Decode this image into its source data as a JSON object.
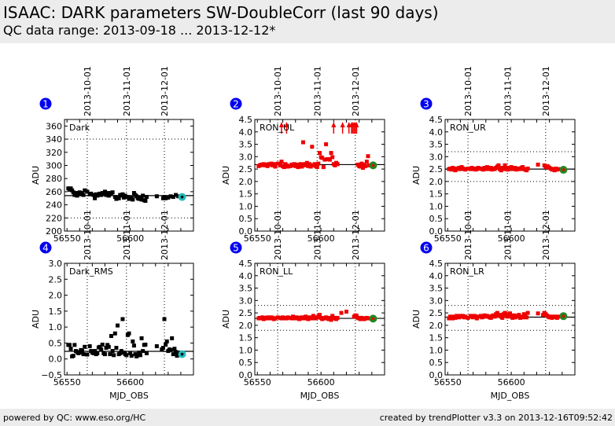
{
  "header": {
    "title": "ISAAC: DARK parameters SW-DoubleCorr (last 90 days)",
    "subtitle": "QC data range: 2013-09-18 ... 2013-12-12*"
  },
  "footer": {
    "left": "powered by QC: www.eso.org/HC",
    "right": "created by trendPlotter v3.3 on 2013-12-16T09:52:42"
  },
  "colors": {
    "badge": "#0000ee",
    "black_points": "#000000",
    "red_points": "#ee0000",
    "latest_cyan": "#22bbbb",
    "latest_green": "#228822"
  },
  "chart_data": [
    {
      "type": "scatter",
      "id": 1,
      "badge": "1",
      "label": "Dark",
      "ylabel": "ADU",
      "xlabel": "",
      "xlim": [
        56548,
        56650
      ],
      "ylim": [
        200,
        370
      ],
      "yticks": [
        200,
        220,
        240,
        260,
        280,
        300,
        320,
        340,
        360
      ],
      "xticks": [
        56550,
        56600
      ],
      "date_ticks": [
        {
          "mjd": 56566,
          "label": "2013-10-01"
        },
        {
          "mjd": 56597,
          "label": "2013-11-01"
        },
        {
          "mjd": 56627,
          "label": "2013-12-01"
        }
      ],
      "ref_line": 254,
      "thresholds": [
        220,
        340
      ],
      "point_color": "black",
      "latest": {
        "x": 56641,
        "y": 252,
        "color": "cyan"
      },
      "x": [
        56551,
        56552,
        56553,
        56554,
        56555,
        56556,
        56557,
        56558,
        56559,
        56560,
        56561,
        56562,
        56563,
        56564,
        56566,
        56568,
        56569,
        56571,
        56572,
        56573,
        56574,
        56575,
        56576,
        56577,
        56578,
        56579,
        56580,
        56581,
        56582,
        56583,
        56584,
        56585,
        56586,
        56588,
        56589,
        56590,
        56591,
        56592,
        56593,
        56594,
        56595,
        56596,
        56598,
        56599,
        56601,
        56602,
        56603,
        56604,
        56605,
        56606,
        56607,
        56608,
        56609,
        56610,
        56611,
        56612,
        56613,
        56621,
        56626,
        56627,
        56628,
        56630,
        56632,
        56634,
        56636,
        56638
      ],
      "y": [
        265,
        263,
        265,
        262,
        259,
        255,
        258,
        254,
        257,
        259,
        256,
        258,
        255,
        262,
        260,
        256,
        257,
        255,
        250,
        256,
        254,
        256,
        257,
        255,
        258,
        257,
        260,
        255,
        258,
        254,
        256,
        258,
        259,
        252,
        249,
        251,
        250,
        255,
        254,
        256,
        251,
        254,
        252,
        249,
        251,
        248,
        258,
        255,
        253,
        250,
        249,
        251,
        248,
        254,
        247,
        246,
        252,
        253,
        250,
        252,
        250,
        251,
        253,
        252,
        255,
        253
      ]
    },
    {
      "type": "scatter",
      "id": 2,
      "badge": "2",
      "label": "RON_UL",
      "ylabel": "ADU",
      "xlabel": "",
      "xlim": [
        56548,
        56650
      ],
      "ylim": [
        0,
        4.5
      ],
      "yticks": [
        0.0,
        0.5,
        1.0,
        1.5,
        2.0,
        2.5,
        3.0,
        3.5,
        4.0,
        4.5
      ],
      "xticks": [
        56550,
        56600
      ],
      "date_ticks": [
        {
          "mjd": 56566,
          "label": "2013-10-01"
        },
        {
          "mjd": 56597,
          "label": "2013-11-01"
        },
        {
          "mjd": 56627,
          "label": "2013-12-01"
        }
      ],
      "ref_line": 2.68,
      "thresholds": [],
      "point_color": "red",
      "latest": {
        "x": 56641,
        "y": 2.65,
        "color": "green"
      },
      "outliers_above_x": [
        56569,
        56573,
        56610,
        56617,
        56622,
        56624,
        56625,
        56626,
        56627,
        56628
      ],
      "x": [
        56551,
        56552,
        56553,
        56554,
        56555,
        56556,
        56557,
        56558,
        56559,
        56560,
        56561,
        56562,
        56563,
        56564,
        56566,
        56568,
        56569,
        56570,
        56571,
        56572,
        56573,
        56574,
        56576,
        56577,
        56578,
        56579,
        56580,
        56581,
        56582,
        56583,
        56584,
        56585,
        56586,
        56587,
        56588,
        56589,
        56590,
        56591,
        56592,
        56593,
        56594,
        56595,
        56596,
        56597,
        56598,
        56599,
        56600,
        56601,
        56602,
        56603,
        56604,
        56605,
        56606,
        56607,
        56608,
        56609,
        56610,
        56611,
        56612,
        56613,
        56629,
        56630,
        56631,
        56632,
        56633,
        56634,
        56635,
        56636,
        56637,
        56638
      ],
      "y": [
        2.62,
        2.65,
        2.68,
        2.66,
        2.7,
        2.65,
        2.68,
        2.62,
        2.7,
        2.68,
        2.72,
        2.65,
        2.7,
        2.6,
        2.72,
        2.65,
        2.8,
        2.62,
        2.58,
        2.7,
        2.65,
        2.6,
        2.62,
        2.68,
        2.65,
        2.7,
        2.62,
        2.68,
        2.58,
        2.65,
        2.7,
        2.6,
        3.58,
        2.7,
        2.65,
        2.75,
        2.62,
        2.7,
        2.6,
        3.4,
        2.65,
        2.7,
        2.62,
        2.58,
        2.72,
        3.15,
        2.98,
        2.95,
        2.58,
        2.88,
        3.5,
        2.9,
        2.9,
        2.88,
        3.15,
        2.98,
        2.7,
        2.65,
        2.75,
        2.7,
        2.68,
        2.62,
        2.6,
        2.72,
        2.55,
        2.68,
        2.62,
        2.8,
        3.02,
        2.65
      ]
    },
    {
      "type": "scatter",
      "id": 3,
      "badge": "3",
      "label": "RON_UR",
      "ylabel": "ADU",
      "xlabel": "",
      "xlim": [
        56548,
        56650
      ],
      "ylim": [
        0,
        4.5
      ],
      "yticks": [
        0.0,
        0.5,
        1.0,
        1.5,
        2.0,
        2.5,
        3.0,
        3.5,
        4.0,
        4.5
      ],
      "xticks": [
        56550,
        56600
      ],
      "date_ticks": [
        {
          "mjd": 56566,
          "label": "2013-10-01"
        },
        {
          "mjd": 56597,
          "label": "2013-11-01"
        },
        {
          "mjd": 56627,
          "label": "2013-12-01"
        }
      ],
      "ref_line": 2.5,
      "thresholds": [
        2.0,
        3.2
      ],
      "point_color": "red",
      "latest": {
        "x": 56641,
        "y": 2.47,
        "color": "green"
      },
      "x": [
        56551,
        56552,
        56553,
        56554,
        56555,
        56556,
        56557,
        56558,
        56559,
        56560,
        56561,
        56562,
        56563,
        56564,
        56566,
        56568,
        56569,
        56570,
        56571,
        56572,
        56573,
        56574,
        56576,
        56577,
        56578,
        56579,
        56580,
        56581,
        56582,
        56583,
        56584,
        56585,
        56586,
        56587,
        56588,
        56589,
        56590,
        56591,
        56592,
        56593,
        56594,
        56595,
        56596,
        56597,
        56598,
        56599,
        56600,
        56601,
        56602,
        56603,
        56604,
        56605,
        56606,
        56607,
        56608,
        56609,
        56610,
        56611,
        56612,
        56613,
        56621,
        56626,
        56627,
        56628,
        56629,
        56630,
        56631,
        56632,
        56633,
        56634,
        56635,
        56636,
        56637
      ],
      "y": [
        2.5,
        2.52,
        2.48,
        2.55,
        2.5,
        2.45,
        2.52,
        2.5,
        2.55,
        2.5,
        2.58,
        2.52,
        2.5,
        2.48,
        2.52,
        2.5,
        2.55,
        2.5,
        2.52,
        2.48,
        2.5,
        2.55,
        2.52,
        2.5,
        2.48,
        2.55,
        2.5,
        2.58,
        2.52,
        2.5,
        2.55,
        2.48,
        2.52,
        2.5,
        2.55,
        2.6,
        2.65,
        2.5,
        2.45,
        2.55,
        2.5,
        2.65,
        2.52,
        2.48,
        2.55,
        2.5,
        2.58,
        2.52,
        2.5,
        2.55,
        2.48,
        2.5,
        2.52,
        2.5,
        2.55,
        2.58,
        2.5,
        2.48,
        2.45,
        2.52,
        2.68,
        2.65,
        2.58,
        2.62,
        2.6,
        2.55,
        2.52,
        2.48,
        2.5,
        2.45,
        2.52,
        2.48,
        2.5
      ]
    },
    {
      "type": "scatter",
      "id": 4,
      "badge": "4",
      "label": "Dark_RMS",
      "ylabel": "ADU",
      "xlabel": "MJD_OBS",
      "xlim": [
        56548,
        56650
      ],
      "ylim": [
        -0.5,
        3.0
      ],
      "yticks": [
        -0.5,
        0.0,
        0.5,
        1.0,
        1.5,
        2.0,
        2.5,
        3.0
      ],
      "xticks": [
        56550,
        56600
      ],
      "date_ticks": [
        {
          "mjd": 56566,
          "label": "2013-10-01"
        },
        {
          "mjd": 56597,
          "label": "2013-11-01"
        },
        {
          "mjd": 56627,
          "label": "2013-12-01"
        }
      ],
      "ref_line": 0.24,
      "thresholds": [],
      "point_color": "black",
      "latest": {
        "x": 56641,
        "y": 0.15,
        "color": "cyan"
      },
      "x": [
        56551,
        56552,
        56553,
        56554,
        56555,
        56556,
        56557,
        56558,
        56559,
        56560,
        56561,
        56562,
        56563,
        56564,
        56566,
        56568,
        56569,
        56570,
        56571,
        56572,
        56573,
        56574,
        56575,
        56576,
        56577,
        56578,
        56579,
        56580,
        56581,
        56582,
        56583,
        56584,
        56585,
        56586,
        56587,
        56588,
        56589,
        56590,
        56591,
        56592,
        56593,
        56594,
        56595,
        56596,
        56597,
        56598,
        56599,
        56600,
        56601,
        56602,
        56603,
        56604,
        56605,
        56606,
        56607,
        56608,
        56609,
        56610,
        56611,
        56612,
        56613,
        56621,
        56625,
        56626,
        56627,
        56628,
        56629,
        56630,
        56631,
        56632,
        56633,
        56634,
        56635,
        56636,
        56637,
        56638
      ],
      "y": [
        0.44,
        0.44,
        0.32,
        0.08,
        0.1,
        0.44,
        0.25,
        0.22,
        0.18,
        0.2,
        0.28,
        0.25,
        0.15,
        0.38,
        0.14,
        0.4,
        0.25,
        0.2,
        0.18,
        0.25,
        0.15,
        0.18,
        0.36,
        0.38,
        0.3,
        0.45,
        0.18,
        0.15,
        0.35,
        0.44,
        0.38,
        0.15,
        0.72,
        0.25,
        0.12,
        0.8,
        0.35,
        1.05,
        0.15,
        0.18,
        0.25,
        1.25,
        0.2,
        0.15,
        0.12,
        0.75,
        0.8,
        0.18,
        0.1,
        0.55,
        0.42,
        0.15,
        0.08,
        0.12,
        0.2,
        0.12,
        0.65,
        0.25,
        0.44,
        0.45,
        0.18,
        0.4,
        0.3,
        0.35,
        1.25,
        0.45,
        0.55,
        0.25,
        0.3,
        0.28,
        0.65,
        0.15,
        0.32,
        0.22,
        0.1,
        0.2
      ]
    },
    {
      "type": "scatter",
      "id": 5,
      "badge": "5",
      "label": "RON_LL",
      "ylabel": "ADU",
      "xlabel": "MJD_OBS",
      "xlim": [
        56548,
        56650
      ],
      "ylim": [
        0,
        4.5
      ],
      "yticks": [
        0.0,
        0.5,
        1.0,
        1.5,
        2.0,
        2.5,
        3.0,
        3.5,
        4.0,
        4.5
      ],
      "xticks": [
        56550,
        56600
      ],
      "date_ticks": [
        {
          "mjd": 56566,
          "label": "2013-10-01"
        },
        {
          "mjd": 56597,
          "label": "2013-11-01"
        },
        {
          "mjd": 56627,
          "label": "2013-12-01"
        }
      ],
      "ref_line": 2.28,
      "thresholds": [
        1.8,
        2.8
      ],
      "point_color": "red",
      "latest": {
        "x": 56641,
        "y": 2.27,
        "color": "green"
      },
      "x": [
        56551,
        56552,
        56553,
        56554,
        56555,
        56556,
        56557,
        56558,
        56559,
        56560,
        56561,
        56562,
        56563,
        56564,
        56566,
        56568,
        56569,
        56570,
        56571,
        56572,
        56573,
        56574,
        56576,
        56577,
        56578,
        56579,
        56580,
        56581,
        56582,
        56583,
        56584,
        56585,
        56586,
        56587,
        56588,
        56589,
        56590,
        56591,
        56592,
        56593,
        56594,
        56595,
        56596,
        56597,
        56598,
        56599,
        56600,
        56601,
        56602,
        56603,
        56604,
        56605,
        56606,
        56607,
        56608,
        56609,
        56610,
        56611,
        56612,
        56613,
        56616,
        56620,
        56626,
        56627,
        56628,
        56629,
        56630,
        56631,
        56632,
        56633,
        56634,
        56635,
        56636,
        56637
      ],
      "y": [
        2.28,
        2.3,
        2.28,
        2.32,
        2.25,
        2.3,
        2.28,
        2.32,
        2.3,
        2.28,
        2.32,
        2.3,
        2.25,
        2.28,
        2.32,
        2.3,
        2.28,
        2.32,
        2.28,
        2.3,
        2.28,
        2.32,
        2.3,
        2.28,
        2.35,
        2.3,
        2.28,
        2.32,
        2.3,
        2.25,
        2.28,
        2.32,
        2.3,
        2.28,
        2.35,
        2.3,
        2.25,
        2.32,
        2.28,
        2.3,
        2.38,
        2.28,
        2.3,
        2.32,
        2.35,
        2.42,
        2.3,
        2.25,
        2.28,
        2.3,
        2.32,
        2.28,
        2.25,
        2.3,
        2.22,
        2.38,
        2.28,
        2.3,
        2.25,
        2.3,
        2.5,
        2.55,
        2.35,
        2.4,
        2.38,
        2.3,
        2.28,
        2.25,
        2.3,
        2.28,
        2.25,
        2.28,
        2.3,
        2.28
      ]
    },
    {
      "type": "scatter",
      "id": 6,
      "badge": "6",
      "label": "RON_LR",
      "ylabel": "ADU",
      "xlabel": "MJD_OBS",
      "xlim": [
        56548,
        56650
      ],
      "ylim": [
        0,
        4.5
      ],
      "yticks": [
        0.0,
        0.5,
        1.0,
        1.5,
        2.0,
        2.5,
        3.0,
        3.5,
        4.0,
        4.5
      ],
      "xticks": [
        56550,
        56600
      ],
      "date_ticks": [
        {
          "mjd": 56566,
          "label": "2013-10-01"
        },
        {
          "mjd": 56597,
          "label": "2013-11-01"
        },
        {
          "mjd": 56627,
          "label": "2013-12-01"
        }
      ],
      "ref_line": 2.33,
      "thresholds": [
        1.8,
        2.8
      ],
      "point_color": "red",
      "latest": {
        "x": 56641,
        "y": 2.37,
        "color": "green"
      },
      "x": [
        56551,
        56552,
        56553,
        56554,
        56555,
        56556,
        56557,
        56558,
        56559,
        56560,
        56561,
        56562,
        56563,
        56564,
        56566,
        56568,
        56569,
        56570,
        56571,
        56572,
        56573,
        56574,
        56576,
        56577,
        56578,
        56579,
        56580,
        56581,
        56582,
        56583,
        56584,
        56585,
        56586,
        56587,
        56588,
        56589,
        56590,
        56591,
        56592,
        56593,
        56594,
        56595,
        56596,
        56597,
        56598,
        56599,
        56600,
        56601,
        56602,
        56603,
        56604,
        56605,
        56606,
        56607,
        56608,
        56609,
        56610,
        56611,
        56612,
        56613,
        56621,
        56625,
        56626,
        56627,
        56628,
        56629,
        56630,
        56631,
        56632,
        56633,
        56634,
        56635,
        56636,
        56637
      ],
      "y": [
        2.28,
        2.35,
        2.3,
        2.28,
        2.35,
        2.3,
        2.38,
        2.35,
        2.32,
        2.38,
        2.35,
        2.38,
        2.32,
        2.35,
        2.3,
        2.38,
        2.35,
        2.32,
        2.38,
        2.35,
        2.28,
        2.35,
        2.38,
        2.32,
        2.35,
        2.4,
        2.35,
        2.38,
        2.35,
        2.32,
        2.3,
        2.38,
        2.4,
        2.35,
        2.45,
        2.5,
        2.38,
        2.42,
        2.35,
        2.3,
        2.45,
        2.5,
        2.38,
        2.35,
        2.45,
        2.48,
        2.35,
        2.3,
        2.4,
        2.32,
        2.38,
        2.35,
        2.42,
        2.3,
        2.35,
        2.32,
        2.45,
        2.38,
        2.32,
        2.5,
        2.48,
        2.42,
        2.5,
        2.45,
        2.4,
        2.35,
        2.32,
        2.35,
        2.3,
        2.35,
        2.33,
        2.35,
        2.3,
        2.35
      ]
    }
  ]
}
